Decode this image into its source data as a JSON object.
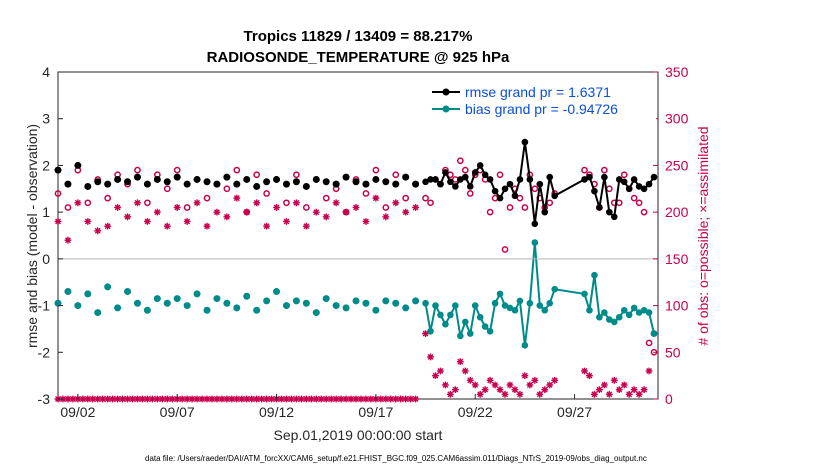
{
  "chart_data": {
    "type": "line",
    "title": "Tropics 11829 / 13409 = 88.217%",
    "subtitle": "RADIOSONDE_TEMPERATURE @ 925 hPa",
    "xlabel": "Sep.01,2019 00:00:00 start",
    "ylabel": "rmse and bias (model - observation)",
    "ylabel_right": "# of obs: o=possible; ×=assimilated",
    "ylim": [
      -3,
      4
    ],
    "ylim_right": [
      0,
      350
    ],
    "xlim": [
      1.0,
      31.2
    ],
    "yticks": [
      "-3",
      "-2",
      "-1",
      "0",
      "1",
      "2",
      "3",
      "4"
    ],
    "yticks_right": [
      "0",
      "50",
      "100",
      "150",
      "200",
      "250",
      "300",
      "350"
    ],
    "xticks": [
      {
        "x": 2,
        "label": "09/02"
      },
      {
        "x": 7,
        "label": "09/07"
      },
      {
        "x": 12,
        "label": "09/12"
      },
      {
        "x": 17,
        "label": "09/17"
      },
      {
        "x": 22,
        "label": "09/22"
      },
      {
        "x": 27,
        "label": "09/27"
      }
    ],
    "legend_position": "top-right",
    "footnote": "data file: /Users/raeder/DAI/ATM_forcXX/CAM6_setup/f.e21.FHIST_BGC.f09_025.CAM6assim.011/Diags_NTrS_2019-09/obs_diag_output.nc",
    "series": [
      {
        "name": "rmse grand pr = 1.6371",
        "color": "#000000",
        "axis": "left",
        "x": [
          19.5,
          19.75,
          20.0,
          20.25,
          20.5,
          20.75,
          21.0,
          21.25,
          21.5,
          21.75,
          22.0,
          22.25,
          22.5,
          22.75,
          23.0,
          23.25,
          23.5,
          23.75,
          24.0,
          24.25,
          24.5,
          24.75,
          25.0,
          25.25,
          25.5,
          25.75,
          26.0,
          27.5,
          27.75,
          28.0,
          28.25,
          28.5,
          28.75,
          29.0,
          29.25,
          29.5,
          29.75,
          30.0,
          30.25,
          30.5,
          30.75,
          31.0
        ],
        "values": [
          1.65,
          1.7,
          1.7,
          1.6,
          1.85,
          1.65,
          1.55,
          1.7,
          1.75,
          1.55,
          1.85,
          2.0,
          1.8,
          1.7,
          1.45,
          1.3,
          1.5,
          1.6,
          1.35,
          1.7,
          2.5,
          1.7,
          0.75,
          1.6,
          1.0,
          1.75,
          1.35,
          1.7,
          1.75,
          1.45,
          1.1,
          1.75,
          1.0,
          0.9,
          1.7,
          1.65,
          1.5,
          1.7,
          1.55,
          1.5,
          1.6,
          1.75
        ]
      },
      {
        "name": "bias grand pr = -0.94726",
        "color": "#008b8b",
        "axis": "left",
        "x": [
          19.5,
          19.75,
          20.0,
          20.25,
          20.5,
          20.75,
          21.0,
          21.25,
          21.5,
          21.75,
          22.0,
          22.25,
          22.5,
          22.75,
          23.0,
          23.25,
          23.5,
          23.75,
          24.0,
          24.25,
          24.5,
          24.75,
          25.0,
          25.25,
          25.5,
          25.75,
          26.0,
          27.5,
          27.75,
          28.0,
          28.25,
          28.5,
          28.75,
          29.0,
          29.25,
          29.5,
          29.75,
          30.0,
          30.25,
          30.5,
          30.75,
          31.0
        ],
        "values": [
          -0.95,
          -1.55,
          -1.0,
          -1.2,
          -1.4,
          -1.2,
          -1.0,
          -1.65,
          -1.35,
          -1.6,
          -1.0,
          -1.25,
          -1.45,
          -1.55,
          -0.95,
          -0.75,
          -1.0,
          -1.05,
          -1.1,
          -0.9,
          -1.85,
          -0.95,
          0.35,
          -1.0,
          -1.1,
          -0.95,
          -0.65,
          -0.75,
          -1.1,
          -0.35,
          -1.25,
          -1.15,
          -1.3,
          -1.35,
          -1.25,
          -1.1,
          -1.2,
          -1.05,
          -1.15,
          -1.1,
          -1.15,
          -1.6
        ]
      },
      {
        "name": "rmse_daily_markers",
        "color": "#000000",
        "axis": "left",
        "x": [
          1.0,
          1.5,
          2.0,
          2.5,
          3.0,
          3.5,
          4.0,
          4.5,
          5.0,
          5.5,
          6.0,
          6.5,
          7.0,
          7.5,
          8.0,
          8.5,
          9.0,
          9.5,
          10.0,
          10.5,
          11.0,
          11.5,
          12.0,
          12.5,
          13.0,
          13.5,
          14.0,
          14.5,
          15.0,
          15.5,
          16.0,
          16.5,
          17.0,
          17.5,
          18.0,
          18.5,
          19.0
        ],
        "values": [
          1.9,
          1.6,
          2.0,
          1.55,
          1.65,
          1.6,
          1.7,
          1.65,
          1.75,
          1.6,
          1.7,
          1.65,
          1.75,
          1.6,
          1.7,
          1.65,
          1.6,
          1.75,
          1.6,
          1.7,
          1.55,
          1.65,
          1.7,
          1.6,
          1.65,
          1.55,
          1.7,
          1.65,
          1.6,
          1.75,
          1.65,
          1.6,
          1.7,
          1.65,
          1.6,
          1.75,
          1.6
        ]
      },
      {
        "name": "bias_daily_markers",
        "color": "#008b8b",
        "axis": "left",
        "x": [
          1.0,
          1.5,
          2.0,
          2.5,
          3.0,
          3.5,
          4.0,
          4.5,
          5.0,
          5.5,
          6.0,
          6.5,
          7.0,
          7.5,
          8.0,
          8.5,
          9.0,
          9.5,
          10.0,
          10.5,
          11.0,
          11.5,
          12.0,
          12.5,
          13.0,
          13.5,
          14.0,
          14.5,
          15.0,
          15.5,
          16.0,
          16.5,
          17.0,
          17.5,
          18.0,
          18.5,
          19.0
        ],
        "values": [
          -0.95,
          -0.7,
          -1.0,
          -0.75,
          -1.15,
          -0.6,
          -1.05,
          -0.7,
          -0.95,
          -1.1,
          -0.85,
          -0.95,
          -0.85,
          -1.0,
          -0.75,
          -1.1,
          -0.85,
          -0.95,
          -1.05,
          -0.8,
          -1.1,
          -0.9,
          -0.7,
          -1.0,
          -0.9,
          -0.95,
          -1.15,
          -0.85,
          -1.0,
          -1.05,
          -0.9,
          -0.95,
          -1.1,
          -0.9,
          -0.95,
          -1.05,
          -0.9
        ]
      },
      {
        "name": "obs_possible",
        "color": "#c8004e",
        "axis": "right",
        "x": [
          1.0,
          1.5,
          2.0,
          2.5,
          3.0,
          3.5,
          4.0,
          4.5,
          5.0,
          5.5,
          6.0,
          6.5,
          7.0,
          7.5,
          8.0,
          8.5,
          9.0,
          9.5,
          10.0,
          10.5,
          11.0,
          11.5,
          12.0,
          12.5,
          13.0,
          13.5,
          14.0,
          14.5,
          15.0,
          15.5,
          16.0,
          16.5,
          17.0,
          17.5,
          18.0,
          18.5,
          19.0,
          19.5,
          19.75,
          20.0,
          20.25,
          20.5,
          20.75,
          21.0,
          21.25,
          21.5,
          21.75,
          22.0,
          22.25,
          22.5,
          22.75,
          23.0,
          23.25,
          23.5,
          23.75,
          24.0,
          24.25,
          24.5,
          24.75,
          25.0,
          25.25,
          25.5,
          25.75,
          26.0,
          27.5,
          27.75,
          28.0,
          28.25,
          28.5,
          28.75,
          29.0,
          29.25,
          29.5,
          29.75,
          30.0,
          30.25,
          30.5,
          30.75,
          31.0
        ],
        "values": [
          220,
          205,
          245,
          210,
          235,
          215,
          240,
          230,
          245,
          210,
          240,
          225,
          245,
          205,
          235,
          215,
          230,
          225,
          245,
          200,
          240,
          220,
          235,
          210,
          240,
          205,
          235,
          215,
          225,
          200,
          235,
          220,
          245,
          205,
          240,
          215,
          230,
          215,
          210,
          235,
          230,
          245,
          240,
          235,
          255,
          245,
          220,
          240,
          245,
          235,
          200,
          215,
          240,
          160,
          205,
          225,
          215,
          205,
          240,
          225,
          215,
          205,
          210,
          220,
          245,
          240,
          230,
          205,
          245,
          225,
          210,
          210,
          240,
          225,
          215,
          210,
          200,
          60,
          50
        ]
      },
      {
        "name": "obs_assimilated",
        "color": "#c8004e",
        "axis": "right",
        "x": [
          1.0,
          1.5,
          2.0,
          2.5,
          3.0,
          3.5,
          4.0,
          4.5,
          5.0,
          5.5,
          6.0,
          6.5,
          7.0,
          7.5,
          8.0,
          8.5,
          9.0,
          9.5,
          10.0,
          10.5,
          11.0,
          11.5,
          12.0,
          12.5,
          13.0,
          13.5,
          14.0,
          14.5,
          15.0,
          15.5,
          16.0,
          16.5,
          17.0,
          17.5,
          18.0,
          18.5,
          19.0,
          19.5,
          19.75,
          20.0,
          20.25,
          20.5,
          20.75,
          21.0,
          21.25,
          21.5,
          21.75,
          22.0,
          22.25,
          22.5,
          22.75,
          23.0,
          23.25,
          23.5,
          23.75,
          24.0,
          24.25,
          24.5,
          24.75,
          25.0,
          25.25,
          25.5,
          25.75,
          26.0,
          27.5,
          27.75,
          28.0,
          28.25,
          28.5,
          28.75,
          29.0,
          29.25,
          29.5,
          29.75,
          30.0,
          30.25,
          30.5,
          30.75,
          31.0
        ],
        "values": [
          190,
          170,
          210,
          190,
          180,
          185,
          205,
          195,
          210,
          190,
          200,
          185,
          205,
          190,
          210,
          185,
          200,
          195,
          215,
          200,
          210,
          185,
          205,
          190,
          210,
          185,
          200,
          195,
          210,
          200,
          205,
          190,
          215,
          195,
          210,
          200,
          205,
          70,
          45,
          25,
          30,
          15,
          5,
          10,
          40,
          30,
          20,
          15,
          5,
          10,
          20,
          15,
          10,
          5,
          15,
          10,
          5,
          25,
          15,
          20,
          5,
          10,
          15,
          20,
          30,
          25,
          5,
          10,
          15,
          5,
          20,
          10,
          15,
          5,
          10,
          5,
          10,
          30,
          70
        ]
      },
      {
        "name": "obs_assimilated_baseline",
        "color": "#c8004e",
        "axis": "right",
        "x": [
          1.0,
          1.25,
          1.5,
          1.75,
          2.0,
          2.25,
          2.5,
          2.75,
          3.0,
          3.25,
          3.5,
          3.75,
          4.0,
          4.25,
          4.5,
          4.75,
          5.0,
          5.25,
          5.5,
          5.75,
          6.0,
          6.25,
          6.5,
          6.75,
          7.0,
          7.25,
          7.5,
          7.75,
          8.0,
          8.25,
          8.5,
          8.75,
          9.0,
          9.25,
          9.5,
          9.75,
          10.0,
          10.25,
          10.5,
          10.75,
          11.0,
          11.25,
          11.5,
          11.75,
          12.0,
          12.25,
          12.5,
          12.75,
          13.0,
          13.25,
          13.5,
          13.75,
          14.0,
          14.25,
          14.5,
          14.75,
          15.0,
          15.25,
          15.5,
          15.75,
          16.0,
          16.25,
          16.5,
          16.75,
          17.0,
          17.25,
          17.5,
          17.75,
          18.0,
          18.25,
          18.5,
          18.75,
          19.0
        ],
        "values": [
          0,
          0,
          0,
          0,
          0,
          0,
          0,
          0,
          0,
          0,
          0,
          0,
          0,
          0,
          0,
          0,
          0,
          0,
          0,
          0,
          0,
          0,
          0,
          0,
          0,
          0,
          0,
          0,
          0,
          0,
          0,
          0,
          0,
          0,
          0,
          0,
          0,
          0,
          0,
          0,
          0,
          0,
          0,
          0,
          0,
          0,
          0,
          0,
          0,
          0,
          0,
          0,
          0,
          0,
          0,
          0,
          0,
          0,
          0,
          0,
          0,
          0,
          0,
          0,
          0,
          0,
          0,
          0,
          0,
          0,
          0,
          0,
          0
        ]
      }
    ]
  }
}
